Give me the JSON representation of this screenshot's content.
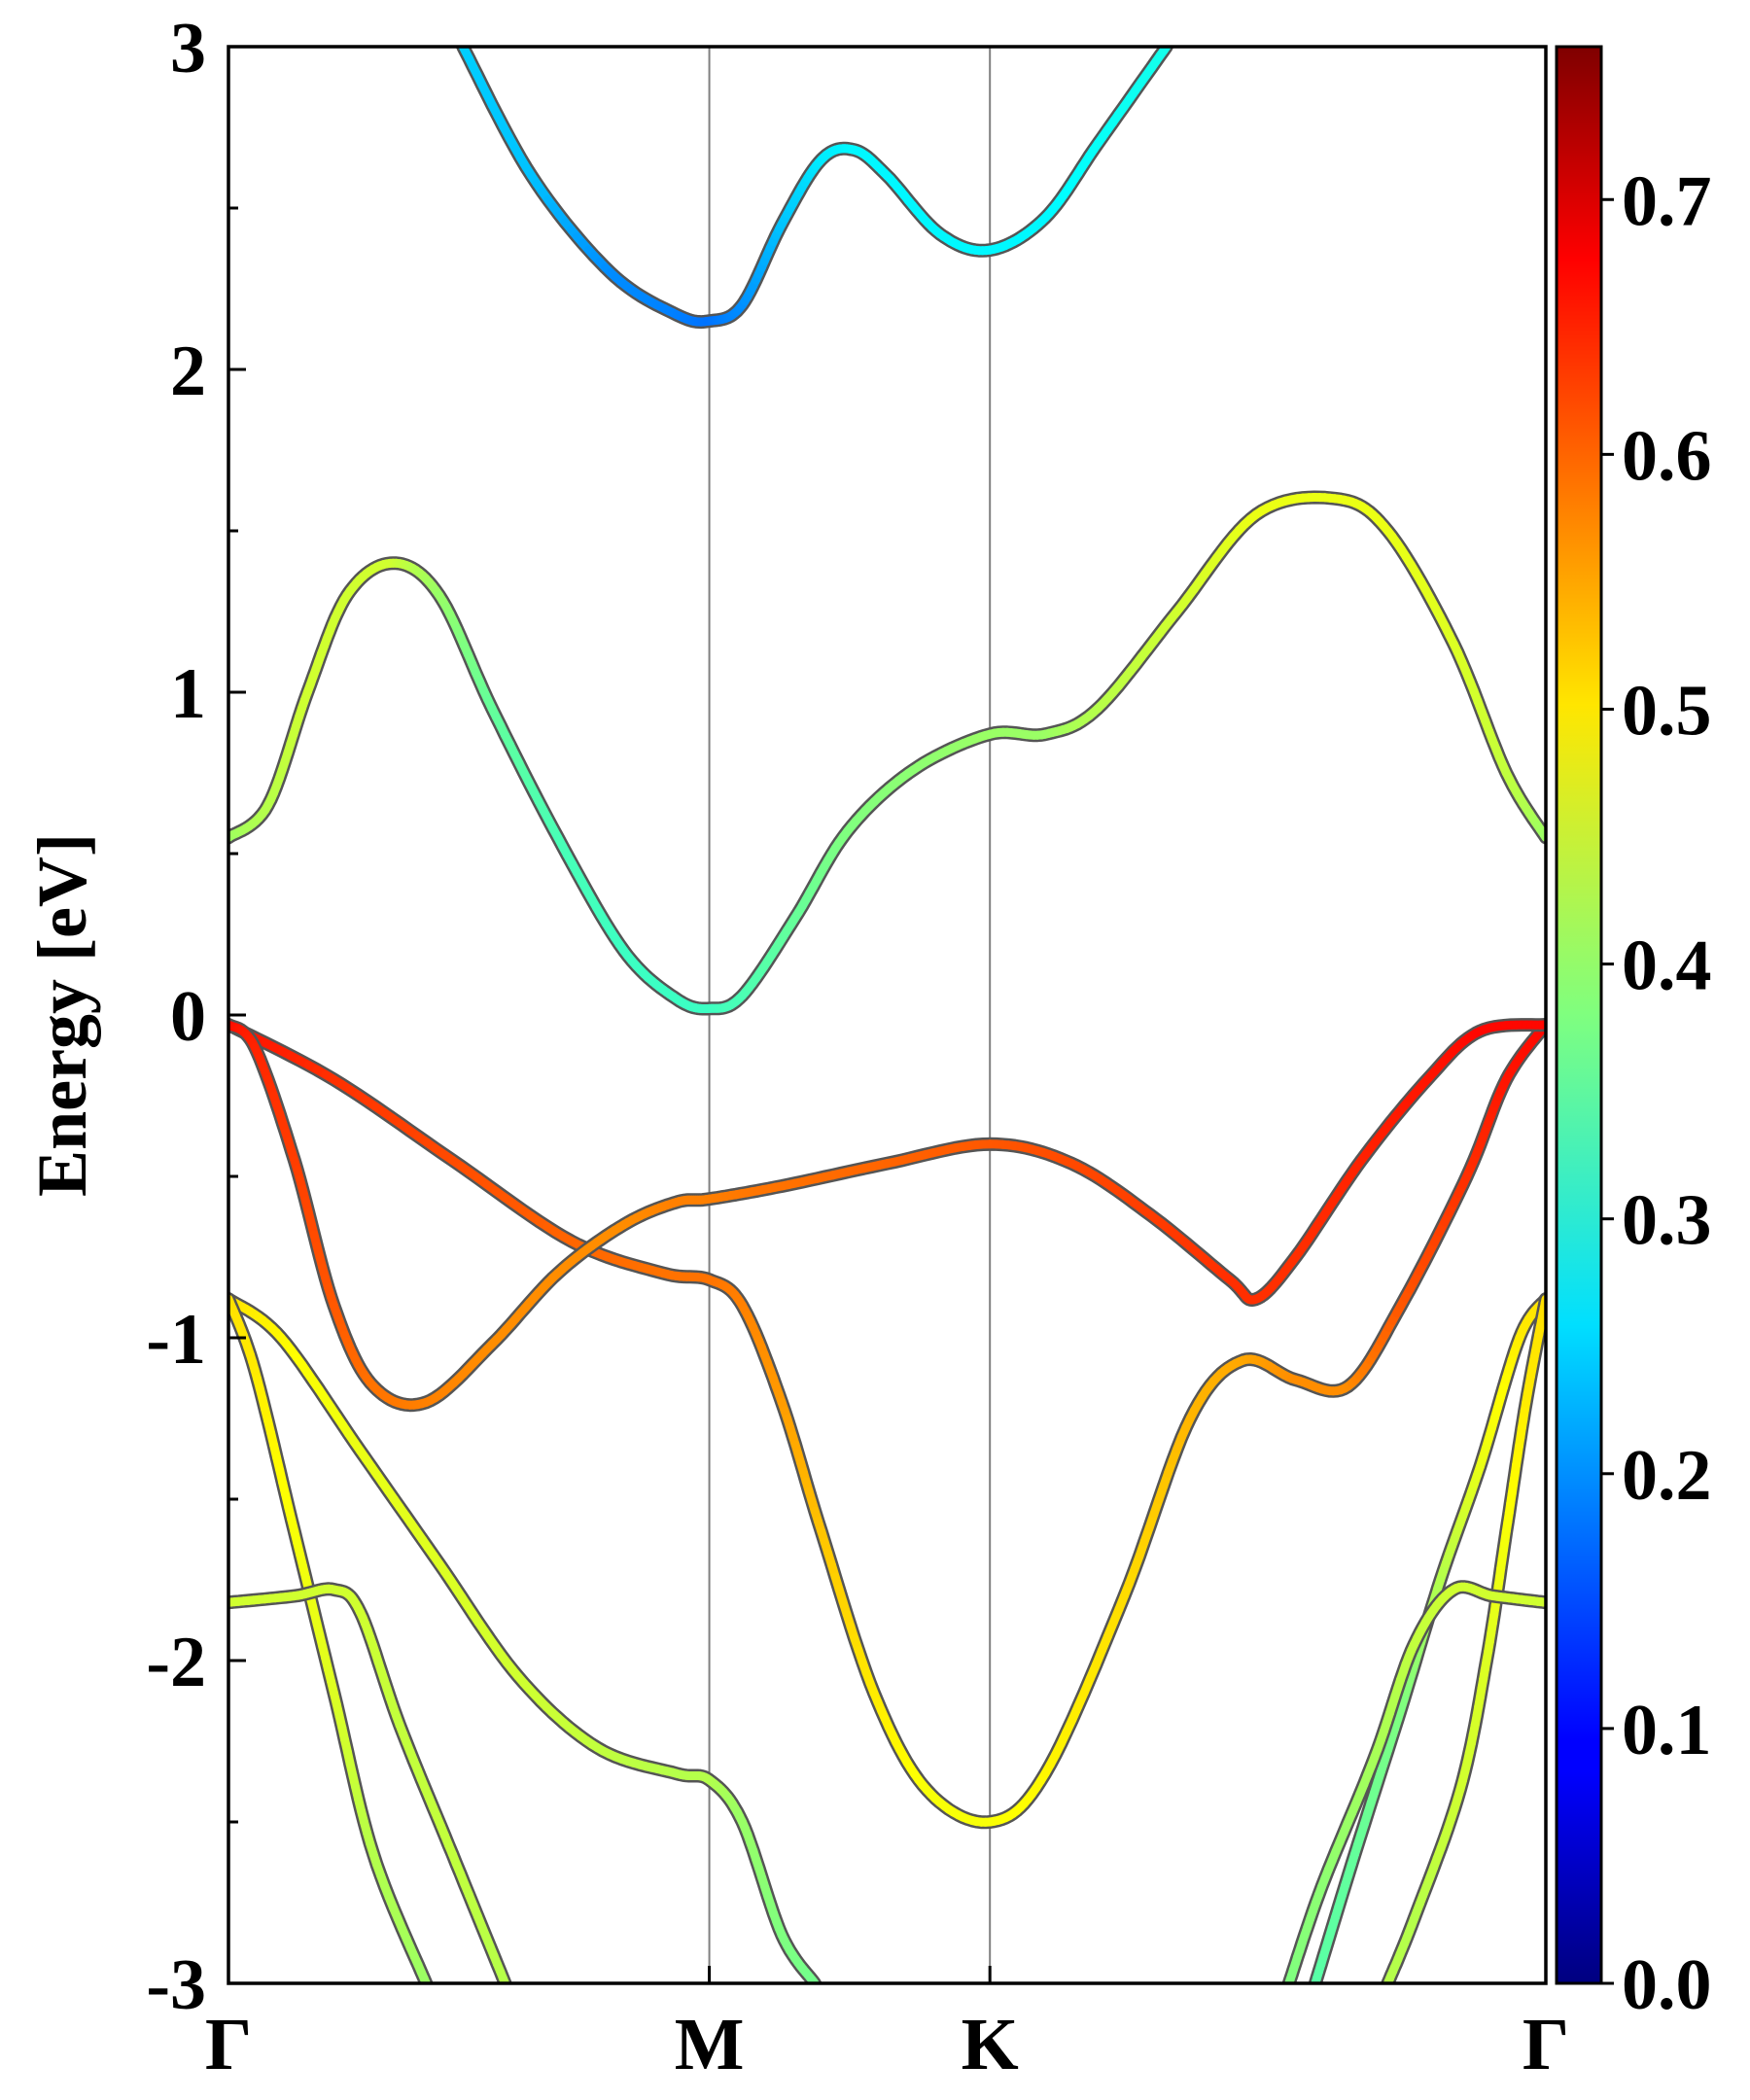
{
  "chart_data": {
    "type": "line",
    "title": "",
    "xlabel": "",
    "ylabel": "Energy [eV]",
    "ylim": [
      -3,
      3
    ],
    "x_ticks": [
      {
        "label": "Γ",
        "x": 0.0
      },
      {
        "label": "M",
        "x": 0.365
      },
      {
        "label": "K",
        "x": 0.578
      },
      {
        "label": "Γ",
        "x": 1.0
      }
    ],
    "y_ticks": [
      3,
      2,
      1,
      0,
      -1,
      -2,
      -3
    ],
    "grid": "vertical lines at high-symmetry points",
    "colorbar": {
      "colormap": "jet",
      "range": [
        0.0,
        0.76
      ],
      "ticks": [
        "0.0",
        "0.1",
        "0.2",
        "0.3",
        "0.4",
        "0.5",
        "0.6",
        "0.7"
      ]
    },
    "series": [
      {
        "points": [
          [
            0.178,
            3.0
          ],
          [
            0.23,
            2.6
          ],
          [
            0.29,
            2.3
          ],
          [
            0.34,
            2.17
          ],
          [
            0.365,
            2.15
          ],
          [
            0.39,
            2.2
          ],
          [
            0.42,
            2.45
          ],
          [
            0.45,
            2.65
          ],
          [
            0.475,
            2.68
          ],
          [
            0.5,
            2.6
          ],
          [
            0.54,
            2.42
          ],
          [
            0.578,
            2.37
          ],
          [
            0.62,
            2.47
          ],
          [
            0.66,
            2.7
          ],
          [
            0.712,
            3.0
          ]
        ],
        "weight": [
          0.25,
          0.24,
          0.2,
          0.19,
          0.18,
          0.2,
          0.24,
          0.27,
          0.28,
          0.28,
          0.28,
          0.28,
          0.28,
          0.29,
          0.3
        ]
      },
      {
        "points": [
          [
            0.0,
            0.55
          ],
          [
            0.03,
            0.65
          ],
          [
            0.06,
            1.0
          ],
          [
            0.09,
            1.3
          ],
          [
            0.125,
            1.4
          ],
          [
            0.16,
            1.3
          ],
          [
            0.2,
            0.95
          ],
          [
            0.25,
            0.55
          ],
          [
            0.3,
            0.2
          ],
          [
            0.34,
            0.05
          ],
          [
            0.365,
            0.02
          ],
          [
            0.39,
            0.06
          ],
          [
            0.43,
            0.3
          ],
          [
            0.47,
            0.57
          ],
          [
            0.52,
            0.76
          ],
          [
            0.578,
            0.87
          ],
          [
            0.62,
            0.87
          ],
          [
            0.66,
            0.95
          ],
          [
            0.72,
            1.25
          ],
          [
            0.78,
            1.55
          ],
          [
            0.84,
            1.6
          ],
          [
            0.88,
            1.5
          ],
          [
            0.93,
            1.15
          ],
          [
            0.97,
            0.75
          ],
          [
            1.0,
            0.55
          ]
        ],
        "weight": [
          0.4,
          0.42,
          0.44,
          0.44,
          0.44,
          0.4,
          0.36,
          0.34,
          0.33,
          0.33,
          0.33,
          0.34,
          0.36,
          0.38,
          0.39,
          0.4,
          0.4,
          0.42,
          0.44,
          0.46,
          0.46,
          0.46,
          0.45,
          0.43,
          0.4
        ]
      },
      {
        "points": [
          [
            0.0,
            -0.03
          ],
          [
            0.08,
            -0.2
          ],
          [
            0.17,
            -0.45
          ],
          [
            0.26,
            -0.7
          ],
          [
            0.33,
            -0.8
          ],
          [
            0.365,
            -0.82
          ],
          [
            0.39,
            -0.9
          ],
          [
            0.42,
            -1.2
          ],
          [
            0.45,
            -1.6
          ],
          [
            0.49,
            -2.1
          ],
          [
            0.53,
            -2.4
          ],
          [
            0.578,
            -2.5
          ],
          [
            0.62,
            -2.35
          ],
          [
            0.68,
            -1.8
          ],
          [
            0.73,
            -1.25
          ],
          [
            0.77,
            -1.07
          ],
          [
            0.81,
            -1.13
          ],
          [
            0.85,
            -1.15
          ],
          [
            0.89,
            -0.9
          ],
          [
            0.94,
            -0.5
          ],
          [
            0.97,
            -0.2
          ],
          [
            1.0,
            -0.03
          ]
        ],
        "weight": [
          0.66,
          0.63,
          0.61,
          0.59,
          0.58,
          0.58,
          0.57,
          0.55,
          0.52,
          0.49,
          0.47,
          0.47,
          0.48,
          0.5,
          0.53,
          0.54,
          0.56,
          0.56,
          0.6,
          0.63,
          0.65,
          0.66
        ]
      },
      {
        "points": [
          [
            0.0,
            -0.03
          ],
          [
            0.02,
            -0.1
          ],
          [
            0.05,
            -0.45
          ],
          [
            0.08,
            -0.9
          ],
          [
            0.11,
            -1.15
          ],
          [
            0.15,
            -1.2
          ],
          [
            0.2,
            -1.02
          ],
          [
            0.25,
            -0.8
          ],
          [
            0.3,
            -0.65
          ],
          [
            0.34,
            -0.58
          ],
          [
            0.365,
            -0.57
          ],
          [
            0.42,
            -0.53
          ],
          [
            0.5,
            -0.46
          ],
          [
            0.578,
            -0.4
          ],
          [
            0.64,
            -0.46
          ],
          [
            0.7,
            -0.62
          ],
          [
            0.76,
            -0.82
          ],
          [
            0.78,
            -0.88
          ],
          [
            0.81,
            -0.75
          ],
          [
            0.86,
            -0.45
          ],
          [
            0.91,
            -0.2
          ],
          [
            0.95,
            -0.05
          ],
          [
            1.0,
            -0.03
          ]
        ],
        "weight": [
          0.66,
          0.64,
          0.62,
          0.6,
          0.58,
          0.57,
          0.56,
          0.56,
          0.56,
          0.57,
          0.57,
          0.58,
          0.59,
          0.6,
          0.61,
          0.62,
          0.63,
          0.63,
          0.63,
          0.64,
          0.65,
          0.66,
          0.66
        ]
      },
      {
        "points": [
          [
            0.0,
            -0.88
          ],
          [
            0.04,
            -1.0
          ],
          [
            0.1,
            -1.35
          ],
          [
            0.16,
            -1.7
          ],
          [
            0.22,
            -2.05
          ],
          [
            0.28,
            -2.27
          ],
          [
            0.34,
            -2.35
          ],
          [
            0.365,
            -2.37
          ],
          [
            0.39,
            -2.5
          ],
          [
            0.42,
            -2.85
          ],
          [
            0.445,
            -3.0
          ]
        ],
        "weight": [
          0.5,
          0.48,
          0.46,
          0.45,
          0.44,
          0.43,
          0.42,
          0.42,
          0.4,
          0.38,
          0.37
        ]
      },
      {
        "points": [
          [
            0.0,
            -0.88
          ],
          [
            0.02,
            -1.1
          ],
          [
            0.05,
            -1.6
          ],
          [
            0.08,
            -2.1
          ],
          [
            0.11,
            -2.6
          ],
          [
            0.15,
            -3.0
          ]
        ],
        "weight": [
          0.5,
          0.49,
          0.47,
          0.45,
          0.42,
          0.4
        ]
      },
      {
        "points": [
          [
            0.0,
            -1.82
          ],
          [
            0.05,
            -1.8
          ],
          [
            0.08,
            -1.78
          ],
          [
            0.1,
            -1.85
          ],
          [
            0.13,
            -2.2
          ],
          [
            0.17,
            -2.6
          ],
          [
            0.21,
            -3.0
          ]
        ],
        "weight": [
          0.44,
          0.44,
          0.44,
          0.44,
          0.43,
          0.43,
          0.42
        ]
      },
      {
        "points": [
          [
            1.0,
            -0.88
          ],
          [
            0.98,
            -1.0
          ],
          [
            0.95,
            -1.4
          ],
          [
            0.92,
            -1.75
          ],
          [
            0.89,
            -2.15
          ],
          [
            0.855,
            -2.6
          ],
          [
            0.825,
            -3.0
          ]
        ],
        "weight": [
          0.5,
          0.49,
          0.46,
          0.42,
          0.38,
          0.36,
          0.35
        ]
      },
      {
        "points": [
          [
            1.0,
            -0.88
          ],
          [
            0.985,
            -1.2
          ],
          [
            0.97,
            -1.6
          ],
          [
            0.955,
            -2.0
          ],
          [
            0.935,
            -2.4
          ],
          [
            0.9,
            -2.8
          ],
          [
            0.88,
            -3.0
          ]
        ],
        "weight": [
          0.5,
          0.49,
          0.47,
          0.45,
          0.44,
          0.42,
          0.42
        ]
      },
      {
        "points": [
          [
            1.0,
            -1.82
          ],
          [
            0.96,
            -1.8
          ],
          [
            0.93,
            -1.78
          ],
          [
            0.9,
            -1.95
          ],
          [
            0.87,
            -2.3
          ],
          [
            0.83,
            -2.7
          ],
          [
            0.805,
            -3.0
          ]
        ],
        "weight": [
          0.44,
          0.44,
          0.44,
          0.43,
          0.41,
          0.39,
          0.38
        ]
      }
    ]
  }
}
